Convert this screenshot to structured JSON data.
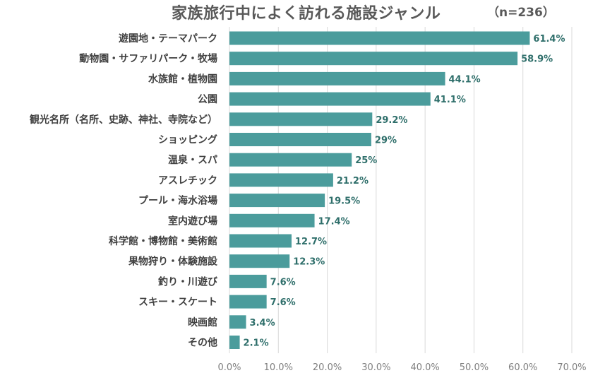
{
  "chart_data": {
    "type": "bar",
    "orientation": "horizontal",
    "title": "家族旅行中によく訪れる施設ジャンル",
    "subtitle": "（n=236）",
    "categories": [
      "遊園地・テーマパーク",
      "動物園・サファリパーク・牧場",
      "水族館・植物園",
      "公園",
      "観光名所（名所、史跡、神社、寺院など）",
      "ショッピング",
      "温泉・スパ",
      "アスレチック",
      "プール・海水浴場",
      "室内遊び場",
      "科学館・博物館・美術館",
      "果物狩り・体験施設",
      "釣り・川遊び",
      "スキー・スケート",
      "映画館",
      "その他"
    ],
    "values": [
      61.4,
      58.9,
      44.1,
      41.1,
      29.2,
      29,
      25,
      21.2,
      19.5,
      17.4,
      12.7,
      12.3,
      7.6,
      7.6,
      3.4,
      2.1
    ],
    "value_labels": [
      "61.4%",
      "58.9%",
      "44.1%",
      "41.1%",
      "29.2%",
      "29%",
      "25%",
      "21.2%",
      "19.5%",
      "17.4%",
      "12.7%",
      "12.3%",
      "7.6%",
      "7.6%",
      "3.4%",
      "2.1%"
    ],
    "xlim": [
      0,
      70
    ],
    "x_ticks": [
      0,
      10,
      20,
      30,
      40,
      50,
      60,
      70
    ],
    "x_tick_labels": [
      "0.0%",
      "10.0%",
      "20.0%",
      "30.0%",
      "40.0%",
      "50.0%",
      "60.0%",
      "70.0%"
    ],
    "grid": true,
    "legend": "none",
    "colors": {
      "bar": "#4b9c9c",
      "value_label": "#2f6f6b",
      "gridline": "#d9d9d9",
      "category_text": "#404040",
      "tick_text": "#7f7f7f"
    }
  }
}
